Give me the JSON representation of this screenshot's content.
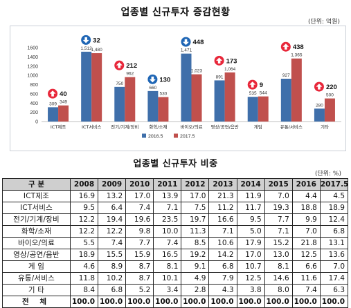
{
  "top_title": "업종별 신규투자 증감현황",
  "top_unit": "(단위: 억원)",
  "table_title": "업종별 신규투자 비중",
  "table_unit": "(단위: %)",
  "colors": {
    "s2016": "#3f6faa",
    "s2017": "#c0504d",
    "up": "#e8273a",
    "down": "#1f66b5"
  },
  "chart_data": {
    "type": "bar",
    "categories": [
      "ICT제조",
      "ICT서비스",
      "전기/기계/장비",
      "화학/소재",
      "바이오/의료",
      "영상/공연/음반",
      "게임",
      "유통/서비스",
      "기타"
    ],
    "series": [
      {
        "name": "2016.5",
        "values": [
          309,
          1512,
          750,
          660,
          1471,
          891,
          535,
          927,
          280
        ]
      },
      {
        "name": "2017.5",
        "values": [
          349,
          1480,
          962,
          530,
          1023,
          1064,
          544,
          1365,
          500
        ]
      }
    ],
    "changes": [
      {
        "direction": "up",
        "value": "40"
      },
      {
        "direction": "down",
        "value": "32"
      },
      {
        "direction": "up",
        "value": "212"
      },
      {
        "direction": "down",
        "value": "130"
      },
      {
        "direction": "down",
        "value": "448"
      },
      {
        "direction": "up",
        "value": "173"
      },
      {
        "direction": "up",
        "value": "9"
      },
      {
        "direction": "up",
        "value": "438"
      },
      {
        "direction": "up",
        "value": "220"
      }
    ],
    "ylim": [
      0,
      1600
    ],
    "yticks": [
      0,
      200,
      400,
      600,
      800,
      1000,
      1200,
      1400,
      1600
    ],
    "grid": false,
    "legend_position": "bottom"
  },
  "table": {
    "header": [
      "구 분",
      "2008",
      "2009",
      "2010",
      "2011",
      "2012",
      "2013",
      "2014",
      "2015",
      "2016",
      "2017.5"
    ],
    "rows": [
      [
        "ICT제조",
        "16.9",
        "13.2",
        "17.0",
        "13.9",
        "17.0",
        "21.3",
        "11.9",
        "7.0",
        "4.4",
        "4.5"
      ],
      [
        "ICT서비스",
        "9.5",
        "6.4",
        "7.4",
        "7.1",
        "7.5",
        "11.2",
        "11.7",
        "19.3",
        "18.8",
        "18.9"
      ],
      [
        "전기/기계/장비",
        "12.2",
        "19.4",
        "19.6",
        "23.5",
        "19.7",
        "16.6",
        "9.5",
        "7.7",
        "9.9",
        "12.4"
      ],
      [
        "화학/소재",
        "12.2",
        "12.2",
        "9.8",
        "10.0",
        "11.3",
        "7.1",
        "5.0",
        "7.1",
        "7.0",
        "6.8"
      ],
      [
        "바이오/의료",
        "5.5",
        "7.4",
        "7.7",
        "7.4",
        "8.5",
        "10.6",
        "17.9",
        "15.2",
        "21.8",
        "13.1"
      ],
      [
        "영상/공연/음반",
        "18.9",
        "15.5",
        "15.9",
        "16.5",
        "19.2",
        "14.2",
        "17.0",
        "13.0",
        "12.5",
        "13.6"
      ],
      [
        "게 임",
        "4.6",
        "8.9",
        "8.7",
        "8.1",
        "9.1",
        "6.8",
        "10.7",
        "8.1",
        "6.6",
        "7.0"
      ],
      [
        "유통/서비스",
        "11.8",
        "10.2",
        "8.7",
        "10.1",
        "4.9",
        "7.9",
        "12.5",
        "14.6",
        "11.6",
        "17.4"
      ],
      [
        "기 타",
        "8.4",
        "6.8",
        "5.2",
        "3.4",
        "2.8",
        "4.3",
        "3.8",
        "8.0",
        "7.4",
        "6.3"
      ],
      [
        "전 체",
        "100.0",
        "100.0",
        "100.0",
        "100.0",
        "100.0",
        "100.0",
        "100.0",
        "100.0",
        "100.0",
        "100.0"
      ]
    ]
  }
}
